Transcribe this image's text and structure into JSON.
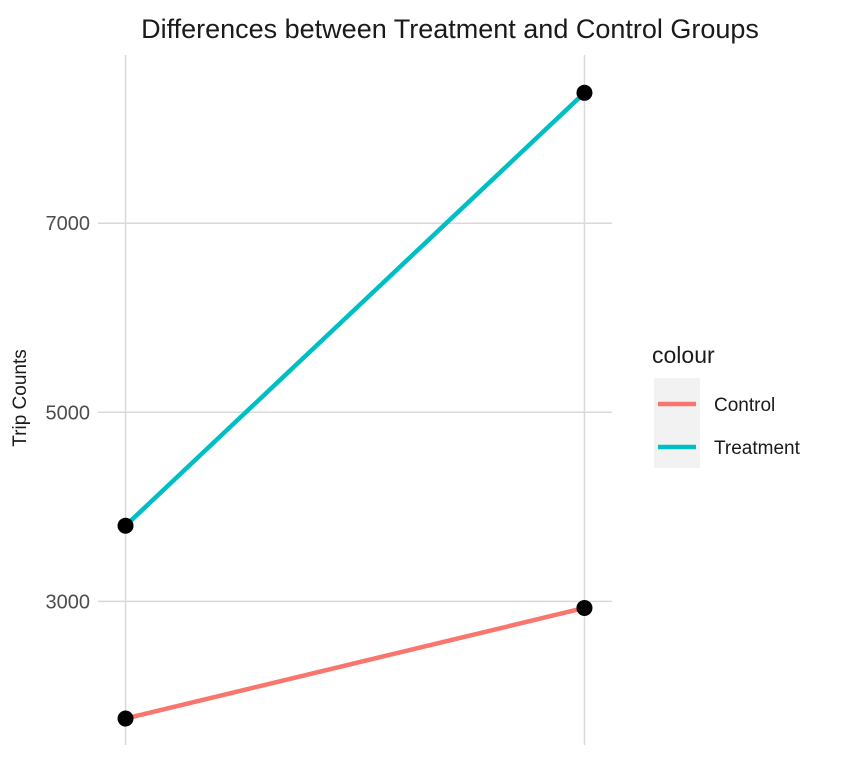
{
  "chart_data": {
    "type": "line",
    "title": "Differences between Treatment and Control Groups",
    "xlabel": "",
    "ylabel": "Trip Counts",
    "x": [
      0,
      1
    ],
    "ylim": [
      1480,
      8780
    ],
    "yticks": [
      3000,
      5000,
      7000
    ],
    "grid": true,
    "legend": {
      "title": "colour",
      "placement": "right"
    },
    "series": [
      {
        "name": "Control",
        "color": "#F8766D",
        "values": [
          1760,
          2930
        ]
      },
      {
        "name": "Treatment",
        "color": "#00BFC4",
        "values": [
          3800,
          8380
        ]
      }
    ],
    "point_color": "#000000"
  }
}
